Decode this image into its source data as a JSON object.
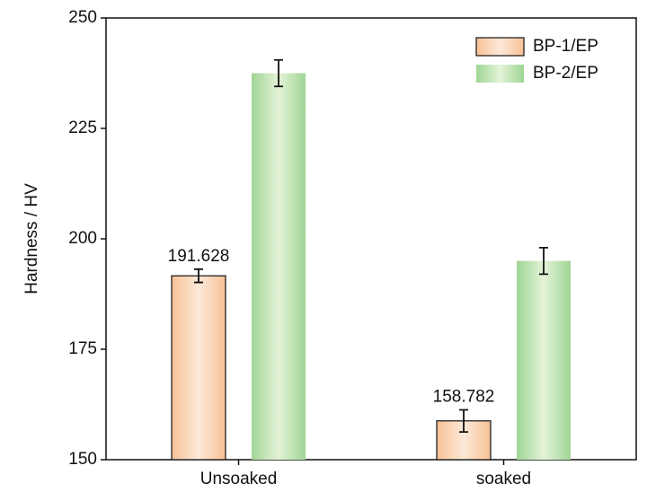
{
  "chart_data": {
    "type": "bar",
    "y_label": "Hardness / HV",
    "categories": [
      "Unsoaked",
      "soaked"
    ],
    "series": [
      {
        "name": "BP-1/EP",
        "color": "#f7c196",
        "highlight": "#fde9d8",
        "outline": "#111111",
        "values": [
          191.628,
          158.782
        ],
        "errors": [
          1.5,
          2.5
        ],
        "show_value_labels": true
      },
      {
        "name": "BP-2/EP",
        "color": "#9fd594",
        "highlight": "#e4f3d8",
        "outline": "none",
        "values": [
          237.5,
          195.0
        ],
        "errors": [
          3.0,
          3.0
        ],
        "show_value_labels": false
      }
    ],
    "ylim": [
      150,
      250
    ],
    "yticks": [
      150,
      175,
      200,
      225,
      250
    ],
    "legend": "upper right",
    "grid": false
  }
}
